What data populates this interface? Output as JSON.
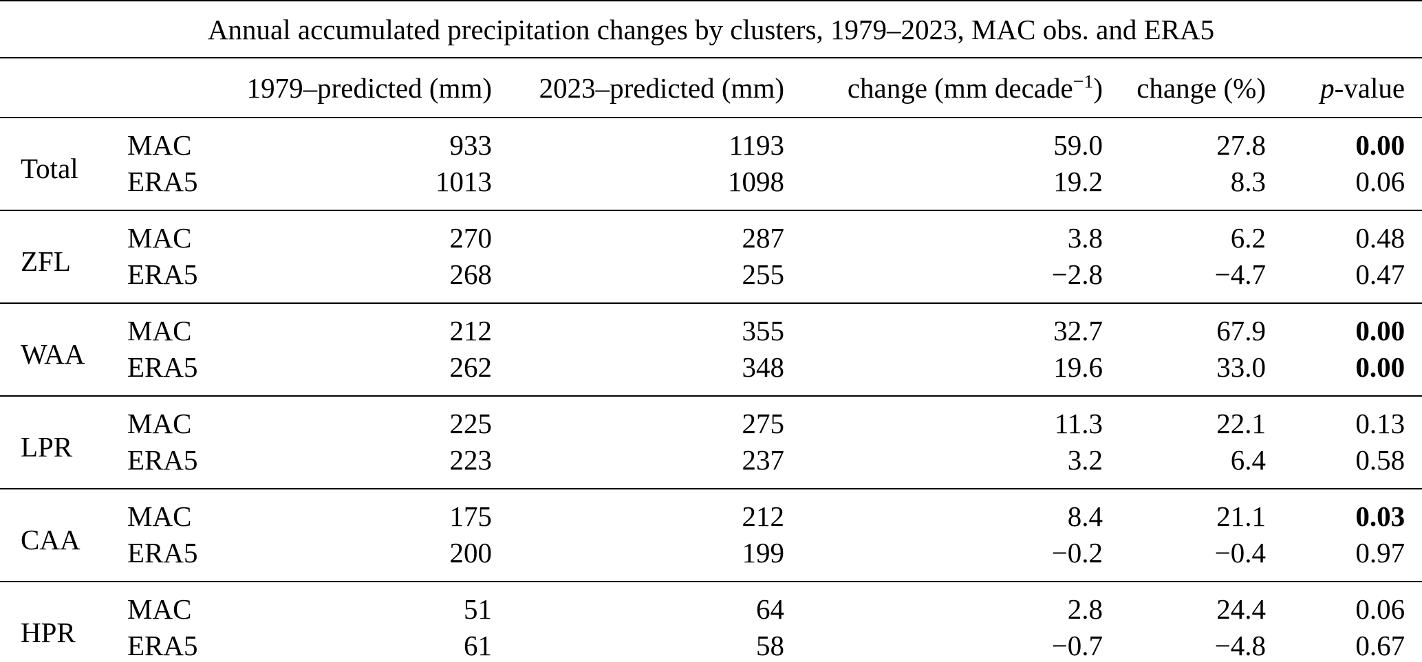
{
  "table": {
    "title": "Annual accumulated precipitation changes by clusters, 1979–2023, MAC obs. and ERA5",
    "columns": {
      "pred1979": "1979–predicted (mm)",
      "pred2023": "2023–predicted (mm)",
      "change_decade_prefix": "change (mm decade",
      "change_decade_sup": "−1",
      "change_decade_suffix": ")",
      "change_pct": "change (%)",
      "pvalue_italic": "p",
      "pvalue_rest": "-value"
    },
    "groups": [
      {
        "cluster": "Total",
        "rows": [
          {
            "source": "MAC",
            "pred1979": "933",
            "pred2023": "1193",
            "change_decade": "59.0",
            "change_pct": "27.8",
            "pvalue": "0.00",
            "pvalue_bold": true
          },
          {
            "source": "ERA5",
            "pred1979": "1013",
            "pred2023": "1098",
            "change_decade": "19.2",
            "change_pct": "8.3",
            "pvalue": "0.06",
            "pvalue_bold": false
          }
        ]
      },
      {
        "cluster": "ZFL",
        "rows": [
          {
            "source": "MAC",
            "pred1979": "270",
            "pred2023": "287",
            "change_decade": "3.8",
            "change_pct": "6.2",
            "pvalue": "0.48",
            "pvalue_bold": false
          },
          {
            "source": "ERA5",
            "pred1979": "268",
            "pred2023": "255",
            "change_decade": "−2.8",
            "change_pct": "−4.7",
            "pvalue": "0.47",
            "pvalue_bold": false
          }
        ]
      },
      {
        "cluster": "WAA",
        "rows": [
          {
            "source": "MAC",
            "pred1979": "212",
            "pred2023": "355",
            "change_decade": "32.7",
            "change_pct": "67.9",
            "pvalue": "0.00",
            "pvalue_bold": true
          },
          {
            "source": "ERA5",
            "pred1979": "262",
            "pred2023": "348",
            "change_decade": "19.6",
            "change_pct": "33.0",
            "pvalue": "0.00",
            "pvalue_bold": true
          }
        ]
      },
      {
        "cluster": "LPR",
        "rows": [
          {
            "source": "MAC",
            "pred1979": "225",
            "pred2023": "275",
            "change_decade": "11.3",
            "change_pct": "22.1",
            "pvalue": "0.13",
            "pvalue_bold": false
          },
          {
            "source": "ERA5",
            "pred1979": "223",
            "pred2023": "237",
            "change_decade": "3.2",
            "change_pct": "6.4",
            "pvalue": "0.58",
            "pvalue_bold": false
          }
        ]
      },
      {
        "cluster": "CAA",
        "rows": [
          {
            "source": "MAC",
            "pred1979": "175",
            "pred2023": "212",
            "change_decade": "8.4",
            "change_pct": "21.1",
            "pvalue": "0.03",
            "pvalue_bold": true
          },
          {
            "source": "ERA5",
            "pred1979": "200",
            "pred2023": "199",
            "change_decade": "−0.2",
            "change_pct": "−0.4",
            "pvalue": "0.97",
            "pvalue_bold": false
          }
        ]
      },
      {
        "cluster": "HPR",
        "rows": [
          {
            "source": "MAC",
            "pred1979": "51",
            "pred2023": "64",
            "change_decade": "2.8",
            "change_pct": "24.4",
            "pvalue": "0.06",
            "pvalue_bold": false
          },
          {
            "source": "ERA5",
            "pred1979": "61",
            "pred2023": "58",
            "change_decade": "−0.7",
            "change_pct": "−4.8",
            "pvalue": "0.67",
            "pvalue_bold": false
          }
        ]
      }
    ]
  }
}
